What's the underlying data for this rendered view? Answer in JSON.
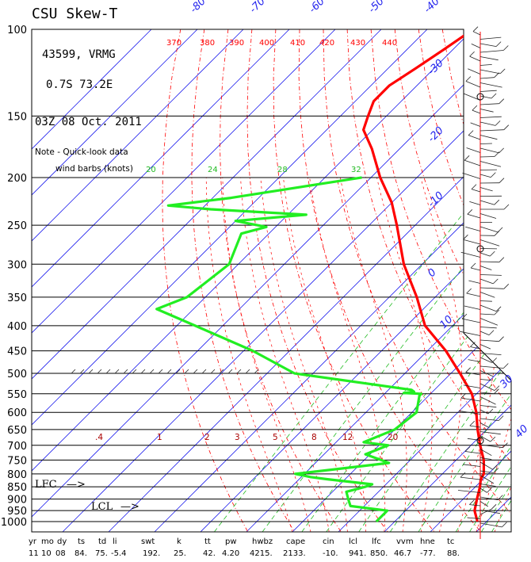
{
  "header": {
    "title": "CSU Skew-T",
    "station": "43599, VRMG",
    "location": "0.7S  73.2E",
    "datetime": "03Z 08 Oct. 2011",
    "note_line1": "Note - Quick-look data",
    "note_line2": "wind barbs (knots)"
  },
  "markers": {
    "lfc": "LFC",
    "lcl": "LCL"
  },
  "indices": {
    "headers": [
      "yr",
      "mo",
      "dy",
      "ts",
      "td",
      "li",
      "swt",
      "k",
      "tt",
      "pw",
      "hwbz",
      "cape",
      "cin",
      "lcl",
      "lfc",
      "vvm",
      "hne",
      "tc"
    ],
    "values": [
      "11",
      "10",
      "08",
      "84.",
      "75.",
      "-5.4",
      "192.",
      "25.",
      "42.",
      "4.20",
      "4215.",
      "2133.",
      "-10.",
      "941.",
      "850.",
      "46.7",
      "-77.",
      "88."
    ]
  },
  "colors": {
    "temperature": "#ff0000",
    "dewpoint": "#22ee22",
    "isotherm": "#2222ee",
    "dry_adiabat": "#ff0000",
    "mixing_ratio": "#22bb22",
    "wind_axis": "#ff0000"
  },
  "chart_data": {
    "type": "line",
    "y_axis": "pressure (hPa), log scale, inverted",
    "x_axis": "temperature (C), skewed",
    "pressure_labels": [
      100,
      150,
      200,
      250,
      300,
      350,
      400,
      450,
      500,
      550,
      600,
      650,
      700,
      750,
      800,
      850,
      900,
      950,
      1000
    ],
    "ylim": [
      1000,
      100
    ],
    "isotherm_labels": [
      "-80",
      "-70",
      "-60",
      "-50",
      "-40",
      "-30",
      "-20",
      "-10",
      "0",
      "10",
      "30",
      "40"
    ],
    "isotherm_label_values": [
      -80,
      -70,
      -60,
      -50,
      -40,
      -30,
      -20,
      -10,
      0,
      10,
      30,
      40
    ],
    "dry_adiabat_labels": [
      "370",
      "380",
      "390",
      "400",
      "410",
      "420",
      "430",
      "440"
    ],
    "dry_adiabat_values": [
      370,
      380,
      390,
      400,
      410,
      420,
      430,
      440
    ],
    "mixing_ratio_labels": [
      "20",
      "24",
      "28",
      "32"
    ],
    "mixing_ratio_values": [
      20,
      24,
      28,
      32
    ],
    "wet_bulb_labels": [
      ".4",
      "1",
      "2",
      "3",
      "5",
      "8",
      "12",
      "20"
    ],
    "wet_bulb_values": [
      0.4,
      1,
      2,
      3,
      5,
      8,
      12,
      20
    ],
    "series": [
      {
        "key": "temperature",
        "p": [
          100,
          110,
          120,
          130,
          140,
          150,
          160,
          175,
          200,
          225,
          250,
          300,
          350,
          400,
          450,
          500,
          550,
          600,
          650,
          700,
          750,
          800,
          820,
          850,
          900,
          950,
          1000
        ],
        "t": [
          -80,
          -82,
          -84,
          -86,
          -86,
          -84,
          -82,
          -76,
          -68,
          -60,
          -54,
          -44,
          -34,
          -26,
          -16,
          -8,
          -1,
          4,
          8,
          12,
          16,
          19,
          19.5,
          21,
          23,
          25,
          28
        ]
      },
      {
        "key": "dewpoint",
        "p": [
          200,
          220,
          228,
          232,
          238,
          245,
          252,
          260,
          300,
          350,
          370,
          400,
          450,
          500,
          540,
          545,
          548,
          550,
          555,
          600,
          650,
          690,
          700,
          730,
          760,
          780,
          800,
          812,
          820,
          840,
          850,
          870,
          900,
          930,
          950,
          1000
        ],
        "t": [
          -72,
          -96,
          -108,
          -98,
          -76,
          -90,
          -82,
          -86,
          -82,
          -84,
          -88,
          -76,
          -58,
          -44,
          -15,
          -14,
          -16,
          -12,
          -12,
          -9,
          -10,
          -14,
          -8,
          -11,
          -4,
          -13,
          -22,
          -18,
          -14,
          -3,
          -4,
          -7,
          -5,
          -3,
          6,
          6
        ]
      }
    ],
    "wind_barbs": "drawn at right, all levels",
    "grid": true
  }
}
